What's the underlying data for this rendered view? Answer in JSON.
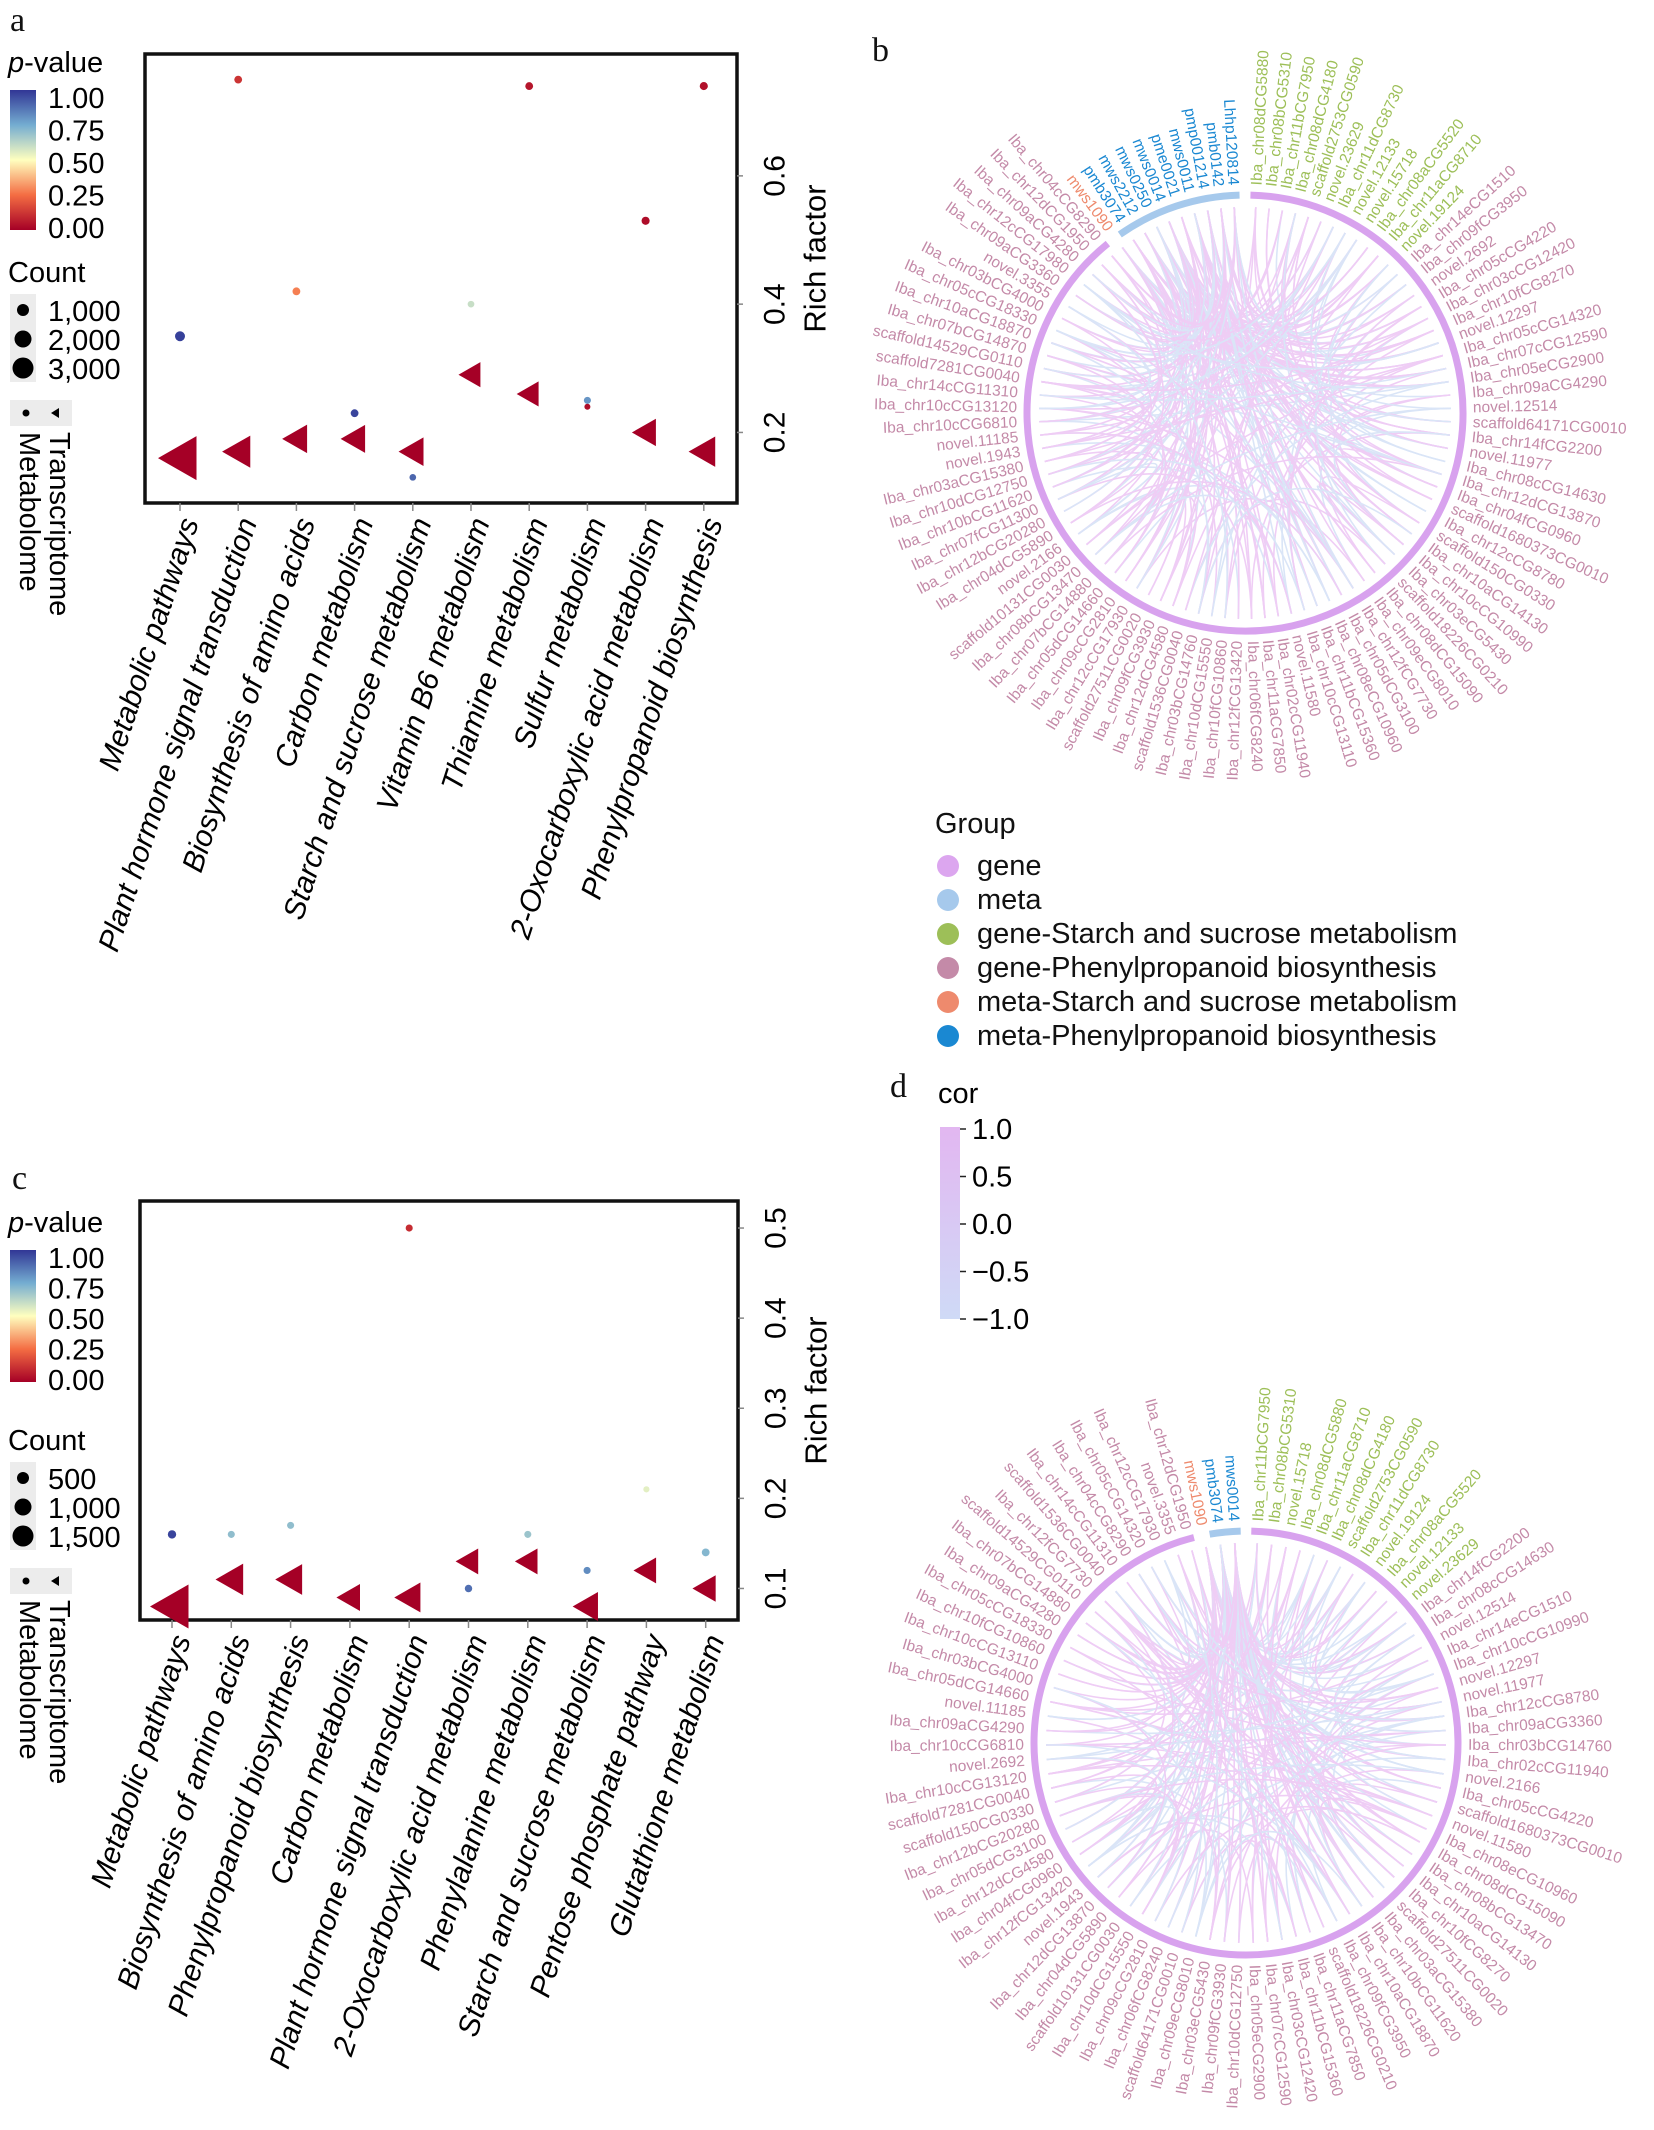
{
  "panels": {
    "a": "a",
    "b": "b",
    "c": "c",
    "d": "d"
  },
  "chart_data": [
    {
      "id": "a",
      "type": "scatter",
      "title": "",
      "xlabel": "",
      "ylabel": "Rich factor",
      "ylim": [
        0.09,
        0.79
      ],
      "yticks": [
        0.2,
        0.4,
        0.6
      ],
      "grid": false,
      "colorbar": {
        "title": "p-value",
        "ticks": [
          "1.00",
          "0.75",
          "0.50",
          "0.25",
          "0.00"
        ]
      },
      "size_legend": {
        "title": "Count",
        "entries": [
          "1,000",
          "2,000",
          "3,000"
        ]
      },
      "shape_legend": {
        "entries": [
          "Metabolome",
          "Transcriptome"
        ],
        "shapes": [
          "circle",
          "triangle"
        ]
      },
      "categories": [
        "Metabolic pathways",
        "Plant hormone signal transduction",
        "Biosynthesis of amino acids",
        "Carbon metabolism",
        "Starch and sucrose metabolism",
        "Vitamin B6 metabolism",
        "Thiamine metabolism",
        "Sulfur metabolism",
        "2-Oxocarboxylic acid metabolism",
        "Phenylpropanoid biosynthesis"
      ],
      "series": [
        {
          "name": "Transcriptome",
          "shape": "triangle",
          "values": [
            0.16,
            0.17,
            0.19,
            0.19,
            0.17,
            0.29,
            0.26,
            null,
            0.2,
            0.17
          ],
          "pvalues": [
            0.0,
            0.0,
            0.0,
            0.0,
            0.0,
            0.0,
            0.0,
            null,
            0.0,
            0.0
          ],
          "counts": [
            3000,
            1200,
            800,
            750,
            800,
            500,
            500,
            null,
            700,
            1000
          ]
        },
        {
          "name": "Metabolome",
          "shape": "circle",
          "values": [
            0.35,
            0.75,
            0.42,
            0.23,
            0.13,
            0.4,
            0.74,
            0.25,
            0.53,
            0.74
          ],
          "pvalues": [
            0.98,
            0.12,
            0.28,
            0.97,
            0.9,
            0.6,
            0.05,
            0.8,
            0.03,
            0.04
          ],
          "counts": [
            150,
            60,
            60,
            60,
            30,
            30,
            60,
            40,
            70,
            70
          ],
          "extra": [
            {
              "category": "Sulfur metabolism",
              "value": 0.24,
              "pvalue": 0.03,
              "count": 40
            }
          ]
        }
      ]
    },
    {
      "id": "c",
      "type": "scatter",
      "title": "",
      "xlabel": "",
      "ylabel": "Rich factor",
      "ylim": [
        0.065,
        0.53
      ],
      "yticks": [
        0.1,
        0.2,
        0.3,
        0.4,
        0.5
      ],
      "grid": false,
      "colorbar": {
        "title": "p-value",
        "ticks": [
          "1.00",
          "0.75",
          "0.50",
          "0.25",
          "0.00"
        ]
      },
      "size_legend": {
        "title": "Count",
        "entries": [
          "500",
          "1,000",
          "1,500"
        ]
      },
      "shape_legend": {
        "entries": [
          "Metabolome",
          "Transcriptome"
        ],
        "shapes": [
          "circle",
          "triangle"
        ]
      },
      "categories": [
        "Metabolic pathways",
        "Biosynthesis of amino acids",
        "Phenylpropanoid biosynthesis",
        "Carbon metabolism",
        "Plant hormone signal transduction",
        "2-Oxocarboxylic acid metabolism",
        "Phenylalanine metabolism",
        "Starch and sucrose metabolism",
        "Pentose phosphate pathway",
        "Glutathione metabolism"
      ],
      "series": [
        {
          "name": "Transcriptome",
          "shape": "triangle",
          "values": [
            0.08,
            0.11,
            0.11,
            0.09,
            0.09,
            0.13,
            0.13,
            0.08,
            0.12,
            0.1
          ],
          "pvalues": [
            0.0,
            0.0,
            0.0,
            0.0,
            0.0,
            0.0,
            0.0,
            0.0,
            0.0,
            0.0
          ],
          "counts": [
            1600,
            600,
            550,
            350,
            500,
            300,
            300,
            450,
            300,
            330
          ]
        },
        {
          "name": "Metabolome",
          "shape": "circle",
          "values": [
            0.16,
            0.16,
            0.17,
            null,
            0.5,
            0.1,
            0.16,
            0.12,
            0.21,
            0.14
          ],
          "pvalues": [
            0.97,
            0.7,
            0.7,
            null,
            0.1,
            0.88,
            0.68,
            0.82,
            0.55,
            0.72
          ],
          "counts": [
            80,
            40,
            40,
            null,
            40,
            50,
            40,
            40,
            20,
            60
          ]
        }
      ]
    }
  ],
  "network_b": {
    "legend_title": "Group",
    "groups": [
      {
        "label": "gene",
        "color": "#dca6ef"
      },
      {
        "label": "meta",
        "color": "#a6c9ec"
      },
      {
        "label": "gene-Starch and sucrose metabolism",
        "color": "#9dbf58"
      },
      {
        "label": "gene-Phenylpropanoid biosynthesis",
        "color": "#c48aa8"
      },
      {
        "label": "meta-Starch and sucrose metabolism",
        "color": "#ee8a6d"
      },
      {
        "label": "meta-Phenylpropanoid biosynthesis",
        "color": "#1a88d2"
      }
    ],
    "nodes_meta_phenyl": [
      "pmb3074",
      "mws2212",
      "mws0250",
      "mws0014",
      "pme0021",
      "mws0011",
      "pmp001214",
      "pmb0142",
      "Lhhp120814"
    ],
    "nodes_meta_starch": [
      "mws1090"
    ],
    "nodes_gene_starch": [
      "Iba_chr08dCG5880",
      "Iba_chr08bCG5310",
      "Iba_chr11bCG7950",
      "Iba_chr08dCG4180",
      "scaffold2753CG0590",
      "novel.23629",
      "Iba_chr11dCG8730",
      "novel.12133",
      "novel.15718",
      "Iba_chr08aCG5520",
      "Iba_chr11aCG8710",
      "novel.19124"
    ],
    "nodes_gene_phenyl": [
      "Iba_chr14eCG1510",
      "Iba_chr09fCG3950",
      "novel.2692",
      "Iba_chr05cCG4220",
      "Iba_chr03cCG12420",
      "Iba_chr10fCG8270",
      "novel.12297",
      "Iba_chr05cCG14320",
      "Iba_chr07cCG12590",
      "Iba_chr05eCG2900",
      "Iba_chr09aCG4290",
      "novel.12514",
      "scaffold64171CG0010",
      "Iba_chr14fCG2200",
      "novel.11977",
      "Iba_chr08cCG14630",
      "Iba_chr12dCG13870",
      "Iba_chr04fCG0960",
      "scaffold1680373CG0010",
      "Iba_chr12cCG8780",
      "scaffold150CG0330",
      "Iba_chr10aCG14130",
      "Iba_chr10cCG10990",
      "Iba_chr03eCG5430",
      "scaffold18226CG0210",
      "Iba_chr08dCG15090",
      "Iba_chr09eCG8010",
      "Iba_chr12fCG7730",
      "Iba_chr05dCG3100",
      "Iba_chr08eCG10960",
      "Iba_chr11bCG15360",
      "Iba_chr10cCG13110",
      "novel.11580",
      "Iba_chr02cCG11940",
      "Iba_chr11aCG7850",
      "Iba_chr06fCG8240",
      "Iba_chr12fCG13420",
      "Iba_chr10fCG10860",
      "Iba_chr10dCG15550",
      "Iba_chr03bCG14760",
      "scaffold1536CG0040",
      "Iba_chr12dCG4580",
      "Iba_chr09fCG3930",
      "scaffold27511CG0020",
      "Iba_chr12cCG17930",
      "Iba_chr09cCG2810",
      "Iba_chr05dCG14660",
      "Iba_chr07bCG14880",
      "Iba_chr08bCG13470",
      "scaffold10131CG0030",
      "novel.2166",
      "Iba_chr04dCG5890",
      "Iba_chr12bCG20280",
      "Iba_chr07fCG11300",
      "Iba_chr10bCG11620",
      "Iba_chr10dCG12750",
      "Iba_chr03aCG15380",
      "novel.1943",
      "novel.11185",
      "Iba_chr10cCG6810",
      "Iba_chr10cCG13120",
      "Iba_chr14cCG11310",
      "scaffold7281CG0040",
      "scaffold14529CG0110",
      "Iba_chr07bCG14870",
      "Iba_chr10aCG18870",
      "Iba_chr05cCG18330",
      "Iba_chr03bCG4000",
      "novel.3355",
      "Iba_chr09aCG3360",
      "Iba_chr12cCG17980",
      "Iba_chr09aCG4280",
      "Iba_chr12dCG1950",
      "Iba_chr04cCG8290"
    ]
  },
  "network_d": {
    "colorbar": {
      "title": "cor",
      "ticks": [
        "1.0",
        "0.5",
        "0.0",
        "−0.5",
        "−1.0"
      ],
      "range": [
        -1.0,
        1.0
      ],
      "colors": [
        "#cfdaf6",
        "#e2b7f1"
      ]
    },
    "nodes_meta_phenyl": [
      "pmb3074",
      "mws0014"
    ],
    "nodes_meta_starch": [
      "mws1090"
    ],
    "nodes_gene_starch": [
      "Iba_chr11bCG7950",
      "Iba_chr08bCG5310",
      "novel.15718",
      "Iba_chr08dCG5880",
      "Iba_chr11aCG8710",
      "Iba_chr08dCG4180",
      "scaffold2753CG0590",
      "Iba_chr11dCG8730",
      "novel.19124",
      "Iba_chr08aCG5520",
      "novel.12133",
      "novel.23629"
    ],
    "nodes_gene_phenyl": [
      "Iba_chr14fCG2200",
      "Iba_chr08cCG14630",
      "novel.12514",
      "Iba_chr14eCG1510",
      "Iba_chr10cCG10990",
      "novel.12297",
      "novel.11977",
      "Iba_chr12cCG8780",
      "Iba_chr09aCG3360",
      "Iba_chr03bCG14760",
      "Iba_chr02cCG11940",
      "novel.2166",
      "Iba_chr05cCG4220",
      "scaffold1680373CG0010",
      "novel.11580",
      "Iba_chr08eCG10960",
      "Iba_chr08dCG15090",
      "Iba_chr08bCG13470",
      "Iba_chr10aCG14130",
      "Iba_chr10fCG8270",
      "scaffold27511CG0020",
      "Iba_chr03aCG15380",
      "Iba_chr10bCG11620",
      "Iba_chr10aCG18870",
      "Iba_chr09fCG3950",
      "scaffold18226CG0210",
      "Iba_chr11aCG7850",
      "Iba_chr11bCG15360",
      "Iba_chr03cCG12420",
      "Iba_chr07cCG12590",
      "Iba_chr05eCG2900",
      "Iba_chr10dCG12750",
      "Iba_chr09fCG3930",
      "Iba_chr03eCG5430",
      "Iba_chr09eCG8010",
      "scaffold64171CG0010",
      "Iba_chr06fCG8240",
      "Iba_chr09cCG2810",
      "Iba_chr10dCG15550",
      "scaffold10131CG0030",
      "Iba_chr04dCG5890",
      "Iba_chr12dCG13870",
      "novel.1943",
      "Iba_chr12fCG13420",
      "Iba_chr04fCG0960",
      "Iba_chr12dCG4580",
      "Iba_chr05dCG3100",
      "Iba_chr12bCG20280",
      "scaffold150CG0330",
      "scaffold7281CG0040",
      "Iba_chr10cCG13120",
      "novel.2692",
      "Iba_chr10cCG6810",
      "Iba_chr09aCG4290",
      "novel.11185",
      "Iba_chr05dCG14660",
      "Iba_chr03bCG4000",
      "Iba_chr10cCG13110",
      "Iba_chr10fCG10860",
      "Iba_chr05cCG18330",
      "Iba_chr09aCG4280",
      "Iba_chr07bCG14880",
      "scaffold14529CG0110",
      "Iba_chr12fCG7730",
      "scaffold1536CG0040",
      "Iba_chr14cCG11310",
      "Iba_chr04cCG8290",
      "Iba_chr05cCG14320",
      "Iba_chr12cCG17930",
      "novel.3355",
      "Iba_chr12dCG1950"
    ]
  }
}
